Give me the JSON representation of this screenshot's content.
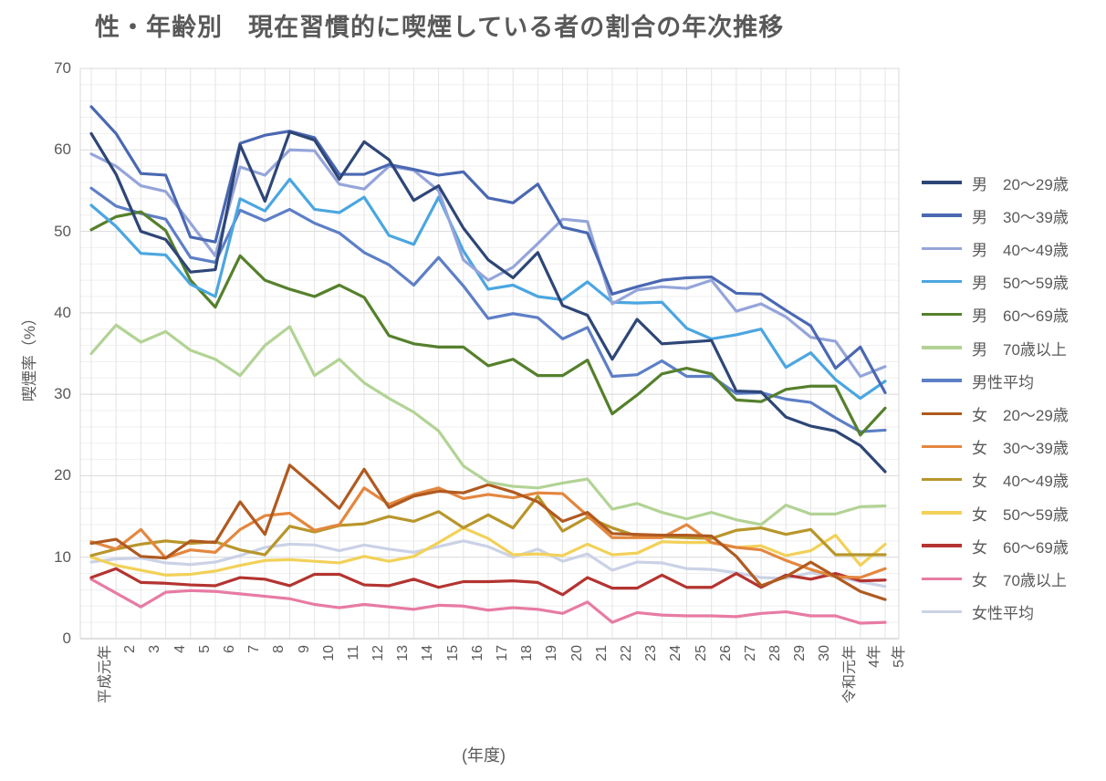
{
  "title": "性・年齢別　現在習慣的に喫煙している者の割合の年次推移",
  "y_axis": {
    "label": "喫煙率（%）",
    "ticks": [
      0,
      10,
      20,
      30,
      40,
      50,
      60,
      70
    ],
    "min": 0,
    "max": 70
  },
  "x_axis": {
    "label": "(年度)"
  },
  "chart_data": {
    "type": "line",
    "title": "性・年齢別　現在習慣的に喫煙している者の割合の年次推移",
    "xlabel": "(年度)",
    "ylabel": "喫煙率（%）",
    "ylim": [
      0,
      70
    ],
    "grid": true,
    "legend_position": "right",
    "categories": [
      "平成元年",
      "2",
      "3",
      "4",
      "5",
      "6",
      "7",
      "8",
      "9",
      "10",
      "11",
      "12",
      "13",
      "14",
      "15",
      "16",
      "17",
      "18",
      "19",
      "20",
      "21",
      "22",
      "23",
      "24",
      "25",
      "26",
      "27",
      "28",
      "29",
      "30",
      "令和元年",
      "4年",
      "5年"
    ],
    "series": [
      {
        "name": "male-20-29",
        "label": "男　20〜29歳",
        "color": "#2E4677",
        "values": [
          62.0,
          57.0,
          50.0,
          49.0,
          45.0,
          45.3,
          60.6,
          53.7,
          62.2,
          61.2,
          56.4,
          61.0,
          58.8,
          53.8,
          55.6,
          50.4,
          46.5,
          44.3,
          47.4,
          40.9,
          39.7,
          34.3,
          39.2,
          36.2,
          36.4,
          36.6,
          30.4,
          30.3,
          27.2,
          26.1,
          25.5,
          23.7,
          20.5
        ]
      },
      {
        "name": "male-30-39",
        "label": "男　30〜39歳",
        "color": "#4A68B2",
        "values": [
          65.3,
          62.0,
          57.1,
          56.9,
          49.3,
          48.7,
          60.8,
          61.8,
          62.3,
          61.5,
          57.0,
          57.0,
          58.2,
          57.6,
          56.9,
          57.3,
          54.1,
          53.5,
          55.8,
          50.5,
          49.8,
          42.3,
          43.2,
          44.0,
          44.3,
          44.4,
          42.4,
          42.3,
          40.3,
          38.4,
          33.2,
          35.8,
          30.2
        ]
      },
      {
        "name": "male-40-49",
        "label": "男　40〜49歳",
        "color": "#95A5DA",
        "values": [
          59.5,
          58.0,
          55.6,
          54.9,
          51.0,
          47.0,
          57.9,
          56.9,
          60.0,
          59.9,
          55.8,
          55.2,
          58.0,
          57.5,
          55.0,
          46.5,
          44.0,
          45.6,
          48.5,
          51.5,
          51.2,
          41.1,
          42.8,
          43.2,
          43.0,
          44.0,
          40.2,
          41.1,
          39.5,
          37.0,
          36.5,
          32.2,
          33.4
        ]
      },
      {
        "name": "male-50-59",
        "label": "男　50〜59歳",
        "color": "#4BA6E0",
        "values": [
          53.2,
          50.6,
          47.3,
          47.1,
          43.5,
          42.0,
          54.0,
          52.5,
          56.4,
          52.7,
          52.3,
          54.2,
          49.5,
          48.4,
          54.2,
          47.6,
          42.9,
          43.4,
          42.0,
          41.6,
          43.8,
          41.3,
          41.2,
          41.3,
          38.1,
          36.8,
          37.3,
          38.0,
          33.3,
          35.1,
          31.8,
          29.5,
          31.6
        ]
      },
      {
        "name": "male-60-69",
        "label": "男　60〜69歳",
        "color": "#55802C",
        "values": [
          50.2,
          51.8,
          52.4,
          50.1,
          44.0,
          40.7,
          47.0,
          44.0,
          42.9,
          42.0,
          43.4,
          41.9,
          37.2,
          36.2,
          35.8,
          35.8,
          33.5,
          34.3,
          32.3,
          32.3,
          34.2,
          27.6,
          29.9,
          32.5,
          33.2,
          32.5,
          29.3,
          29.1,
          30.6,
          31.0,
          31.0,
          25.0,
          28.3
        ]
      },
      {
        "name": "male-70plus",
        "label": "男　70歳以上",
        "color": "#B2D395",
        "values": [
          35.0,
          38.5,
          36.4,
          37.7,
          35.4,
          34.3,
          32.3,
          36.0,
          38.3,
          32.3,
          34.3,
          31.4,
          29.5,
          27.8,
          25.5,
          21.2,
          19.2,
          18.7,
          18.5,
          19.1,
          19.6,
          15.9,
          16.6,
          15.5,
          14.7,
          15.5,
          14.6,
          14.0,
          16.4,
          15.3,
          15.3,
          16.2,
          16.3
        ]
      },
      {
        "name": "male-average",
        "label": "男性平均",
        "color": "#5D7FC6",
        "values": [
          55.3,
          53.1,
          52.2,
          51.5,
          46.8,
          46.2,
          52.6,
          51.3,
          52.7,
          51.0,
          49.8,
          47.4,
          45.9,
          43.4,
          46.8,
          43.3,
          39.3,
          39.9,
          39.4,
          36.8,
          38.2,
          32.2,
          32.4,
          34.1,
          32.2,
          32.2,
          30.1,
          30.2,
          29.4,
          29.0,
          27.1,
          25.4,
          25.6
        ]
      },
      {
        "name": "female-20-29",
        "label": "女　20〜29歳",
        "color": "#B05A20",
        "values": [
          11.7,
          12.2,
          10.1,
          9.9,
          12.0,
          11.8,
          16.8,
          12.8,
          21.3,
          18.7,
          16.0,
          20.8,
          16.1,
          17.5,
          18.1,
          17.9,
          18.9,
          18.0,
          16.8,
          14.4,
          15.5,
          12.9,
          12.8,
          12.7,
          12.7,
          12.6,
          10.1,
          6.5,
          7.6,
          9.4,
          7.6,
          5.8,
          4.8
        ]
      },
      {
        "name": "female-30-39",
        "label": "女　30〜39歳",
        "color": "#E3873F",
        "values": [
          11.9,
          11.0,
          13.4,
          9.9,
          10.9,
          10.6,
          13.4,
          15.1,
          15.4,
          13.3,
          14.0,
          18.5,
          16.5,
          17.7,
          18.5,
          17.2,
          17.7,
          17.3,
          17.9,
          17.8,
          15.1,
          12.4,
          12.4,
          12.4,
          14.0,
          11.8,
          11.2,
          10.9,
          9.6,
          8.5,
          7.6,
          7.5,
          8.6
        ]
      },
      {
        "name": "female-40-49",
        "label": "女　40〜49歳",
        "color": "#B8962B",
        "values": [
          10.2,
          11.0,
          11.6,
          12.0,
          11.7,
          11.9,
          10.9,
          10.3,
          13.8,
          13.1,
          13.9,
          14.1,
          15.0,
          14.4,
          15.6,
          13.6,
          15.2,
          13.6,
          17.5,
          13.2,
          14.9,
          13.6,
          12.6,
          12.5,
          12.4,
          12.3,
          13.3,
          13.6,
          12.8,
          13.4,
          10.3,
          10.3,
          10.3
        ]
      },
      {
        "name": "female-50-59",
        "label": "女　50〜59歳",
        "color": "#F2D159",
        "values": [
          10.0,
          9.0,
          8.4,
          7.8,
          7.9,
          8.3,
          9.0,
          9.6,
          9.7,
          9.5,
          9.3,
          10.1,
          9.5,
          10.1,
          11.8,
          13.6,
          12.3,
          10.3,
          10.4,
          10.2,
          11.6,
          10.3,
          10.5,
          11.9,
          11.8,
          11.8,
          11.2,
          11.4,
          10.2,
          10.8,
          12.7,
          9.0,
          11.6
        ]
      },
      {
        "name": "female-60-69",
        "label": "女　60〜69歳",
        "color": "#B33430",
        "values": [
          7.5,
          8.6,
          6.9,
          6.8,
          6.6,
          6.5,
          7.5,
          7.3,
          6.5,
          7.9,
          7.9,
          6.6,
          6.5,
          7.3,
          6.3,
          7.0,
          7.0,
          7.1,
          6.9,
          5.4,
          7.5,
          6.2,
          6.2,
          7.8,
          6.3,
          6.3,
          8.0,
          6.3,
          7.8,
          7.3,
          8.0,
          7.1,
          7.2
        ]
      },
      {
        "name": "female-70plus",
        "label": "女　70歳以上",
        "color": "#E77BA3",
        "values": [
          7.3,
          5.6,
          3.9,
          5.7,
          5.9,
          5.8,
          5.5,
          5.2,
          4.9,
          4.2,
          3.8,
          4.2,
          3.9,
          3.6,
          4.1,
          4.0,
          3.5,
          3.8,
          3.6,
          3.1,
          4.5,
          2.0,
          3.2,
          2.9,
          2.8,
          2.8,
          2.7,
          3.1,
          3.3,
          2.8,
          2.8,
          1.9,
          2.0
        ]
      },
      {
        "name": "female-average",
        "label": "女性平均",
        "color": "#CBD2E6",
        "values": [
          9.4,
          9.8,
          9.9,
          9.3,
          9.1,
          9.4,
          10.2,
          11.2,
          11.6,
          11.5,
          10.8,
          11.5,
          11.0,
          10.6,
          11.3,
          12.0,
          11.3,
          10.0,
          11.0,
          9.5,
          10.4,
          8.4,
          9.4,
          9.3,
          8.6,
          8.5,
          8.1,
          7.5,
          7.4,
          8.1,
          7.6,
          7.0,
          6.4
        ]
      }
    ]
  },
  "style": {
    "grid_major_color": "#D9D9D9",
    "grid_minor_color": "#EFEFEF",
    "grid_vertical_color": "#E4E4E4",
    "text_color": "#595959"
  }
}
